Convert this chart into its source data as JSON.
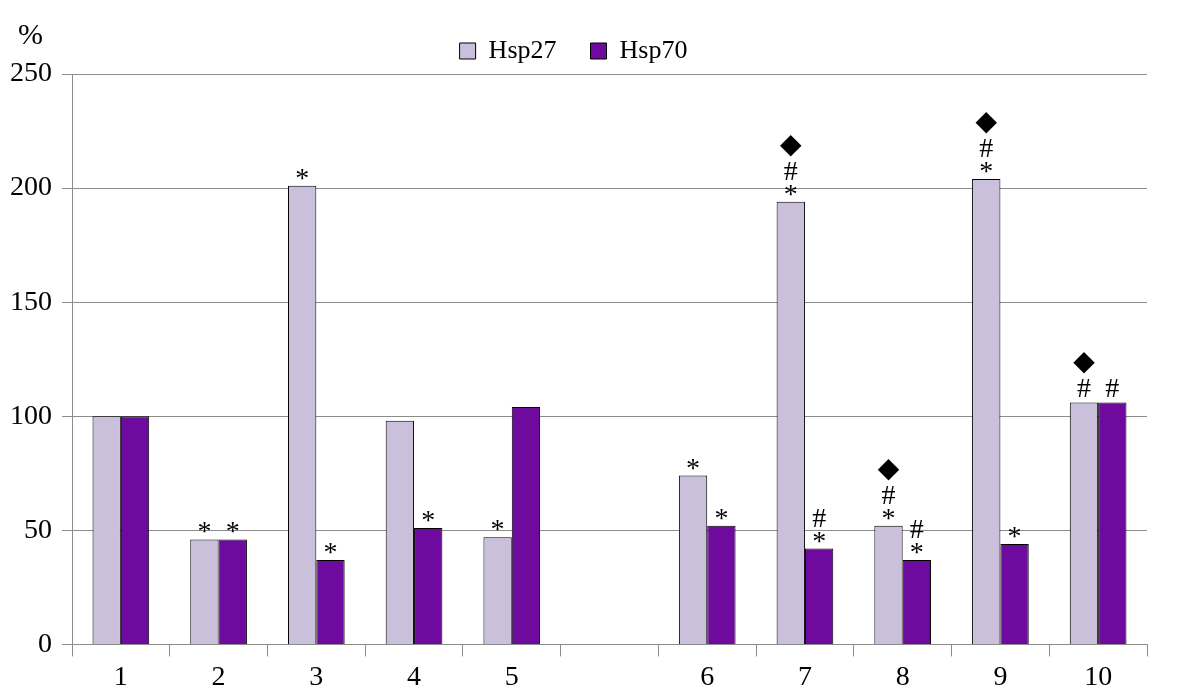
{
  "chart_data": {
    "type": "bar",
    "ylabel": "%",
    "categories": [
      "1",
      "2",
      "3",
      "4",
      "5",
      null,
      "6",
      "7",
      "8",
      "9",
      "10"
    ],
    "series": [
      {
        "name": "Hsp27",
        "color": "#cbc0dc",
        "values": [
          100,
          46,
          201,
          98,
          47,
          null,
          74,
          194,
          52,
          204,
          106
        ],
        "value_labels": [
          null,
          "*",
          "*",
          null,
          "*",
          null,
          "*",
          "◆\n#\n*",
          "◆\n#\n*",
          "◆\n#\n*",
          "◆\n#"
        ]
      },
      {
        "name": "Hsp70",
        "color": "#6e0a9e",
        "values": [
          100,
          46,
          37,
          51,
          104,
          null,
          52,
          42,
          37,
          44,
          106
        ],
        "value_labels": [
          null,
          "*",
          "*",
          "*",
          null,
          null,
          "*",
          "#\n*",
          "#\n*",
          "*",
          "#"
        ]
      }
    ],
    "ylim": [
      0,
      250
    ],
    "yticks": [
      0,
      50,
      100,
      150,
      200,
      250
    ],
    "grid": "y",
    "legend": "top"
  }
}
